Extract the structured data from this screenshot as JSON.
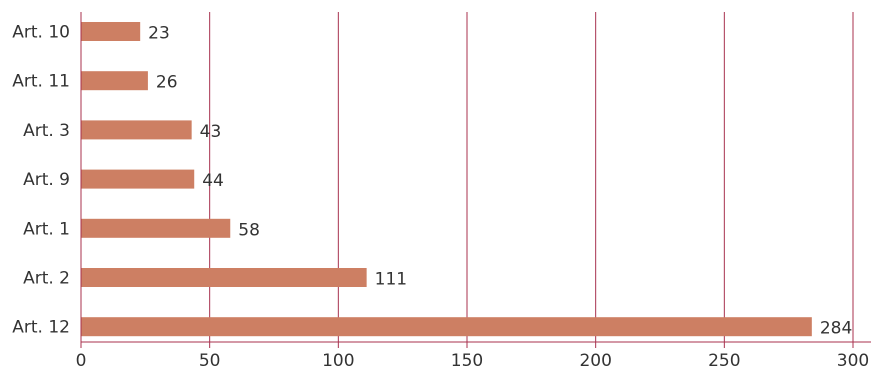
{
  "chart_data": {
    "type": "bar",
    "orientation": "horizontal",
    "title": "",
    "xlabel": "",
    "ylabel": "",
    "categories": [
      "Art. 10",
      "Art. 11",
      "Art. 3",
      "Art. 9",
      "Art. 1",
      "Art. 2",
      "Art. 12"
    ],
    "values": [
      23,
      26,
      43,
      44,
      58,
      111,
      284
    ],
    "xlim": [
      0,
      300
    ],
    "xticks": [
      0,
      50,
      100,
      150,
      200,
      250,
      300
    ],
    "grid": "vertical",
    "data_labels": true,
    "colors": {
      "bar": "#CD7F63",
      "grid": "#A8324E",
      "axis": "#A8324E",
      "text": "#333333"
    }
  }
}
